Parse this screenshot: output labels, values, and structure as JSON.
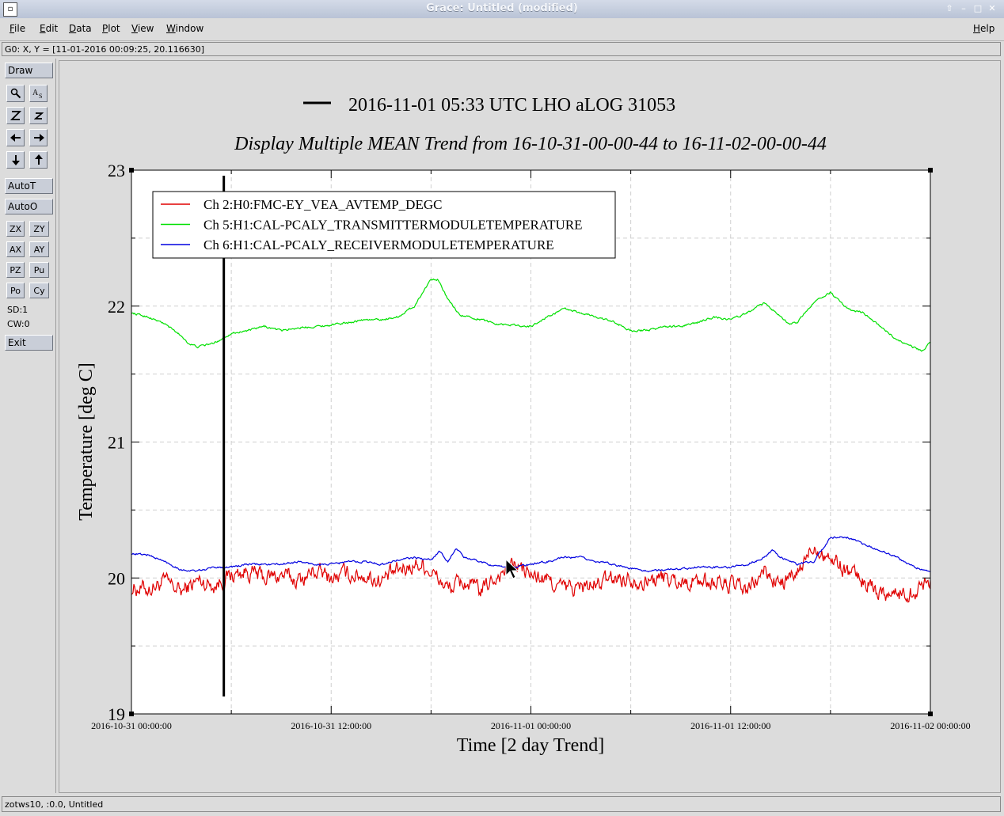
{
  "window": {
    "title": "Grace: Untitled (modified)"
  },
  "menubar": {
    "items": [
      "File",
      "Edit",
      "Data",
      "Plot",
      "View",
      "Window"
    ],
    "help": "Help"
  },
  "locator": "G0: X, Y = [11-01-2016 00:09:25, 20.116630]",
  "toolbar": {
    "draw": "Draw",
    "autot": "AutoT",
    "autoo": "AutoO",
    "zx": "ZX",
    "zy": "ZY",
    "ax": "AX",
    "ay": "AY",
    "pz": "PZ",
    "pu": "Pu",
    "po": "Po",
    "cy": "Cy",
    "sd": "SD:1",
    "cw": "CW:0",
    "exit": "Exit"
  },
  "statusbar": "zotws10, :0.0, Untitled",
  "chart_data": {
    "type": "line",
    "title": "2016-11-01 05:33 UTC LHO aLOG 31053",
    "subtitle": "Display Multiple MEAN Trend from 16-10-31-00-00-44 to 16-11-02-00-00-44",
    "xlabel": "Time [2 day Trend]",
    "ylabel": "Temperature [deg C]",
    "xlim": [
      0,
      48
    ],
    "ylim": [
      19,
      23
    ],
    "yticks": [
      "19",
      "20",
      "21",
      "22",
      "23"
    ],
    "xtick_values": [
      0,
      12,
      24,
      36,
      48
    ],
    "xtick_labels": [
      "2016-10-31 00:00:00",
      "2016-10-31 12:00:00",
      "2016-11-01 00:00:00",
      "2016-11-01 12:00:00",
      "2016-11-02 00:00:00"
    ],
    "grid": true,
    "legend_position": "top-left",
    "marker_line": {
      "label": "2016-11-01 05:33 UTC LHO aLOG 31053",
      "x": 5.55,
      "color": "#000000"
    },
    "series": [
      {
        "name": "Ch 2:H0:FMC-EY_VEA_AVTEMP_DEGC",
        "color": "#e00000",
        "noise": 0.05,
        "x": [
          0,
          1,
          2,
          3,
          4,
          5,
          6,
          7,
          8,
          9,
          10,
          11,
          12,
          13,
          14,
          15,
          16,
          17,
          17.5,
          18,
          19,
          20,
          21,
          22,
          23,
          24,
          25,
          26,
          27,
          28,
          29,
          30,
          31,
          32,
          33,
          34,
          35,
          36,
          37,
          38,
          39,
          40,
          41,
          42,
          43,
          44,
          45,
          46,
          47,
          48
        ],
        "y": [
          19.93,
          19.92,
          19.97,
          19.9,
          19.98,
          19.95,
          20.02,
          20.05,
          20.0,
          20.02,
          19.98,
          20.05,
          20.0,
          20.03,
          20.02,
          19.98,
          20.05,
          20.1,
          20.1,
          20.05,
          19.92,
          19.97,
          19.9,
          20.02,
          20.1,
          20.02,
          19.98,
          19.92,
          19.93,
          19.95,
          20.0,
          20.0,
          19.98,
          20.0,
          19.97,
          19.98,
          19.97,
          19.95,
          19.9,
          20.05,
          19.95,
          20.02,
          20.25,
          20.15,
          20.05,
          19.98,
          19.9,
          19.88,
          19.9,
          20.0
        ]
      },
      {
        "name": "Ch 5:H1:CAL-PCALY_TRANSMITTERMODULETEMPERATURE",
        "color": "#00e000",
        "noise": 0.006,
        "x": [
          0,
          1,
          2,
          3,
          3.5,
          4,
          5,
          6,
          7,
          8,
          9,
          10,
          11,
          12,
          13,
          14,
          15,
          16,
          17,
          18,
          18.4,
          19,
          19.8,
          20,
          21,
          22,
          23,
          24,
          25,
          26,
          27,
          28,
          29,
          30,
          31,
          32,
          33,
          34,
          35,
          36,
          37,
          38,
          39,
          39.5,
          40,
          41,
          42,
          43,
          44,
          45,
          46,
          47,
          47.5,
          48
        ],
        "y": [
          21.95,
          21.92,
          21.87,
          21.78,
          21.72,
          21.7,
          21.73,
          21.8,
          21.82,
          21.85,
          21.82,
          21.84,
          21.85,
          21.86,
          21.88,
          21.9,
          21.9,
          21.92,
          22.0,
          22.2,
          22.2,
          22.05,
          21.92,
          21.93,
          21.9,
          21.87,
          21.86,
          21.85,
          21.92,
          21.98,
          21.95,
          21.92,
          21.88,
          21.82,
          21.82,
          21.85,
          21.85,
          21.88,
          21.92,
          21.9,
          21.95,
          22.02,
          21.93,
          21.87,
          21.88,
          22.03,
          22.1,
          21.98,
          21.95,
          21.85,
          21.75,
          21.7,
          21.67,
          21.73
        ]
      },
      {
        "name": "Ch 6:H1:CAL-PCALY_RECEIVERMODULETEMPERATURE",
        "color": "#0000e0",
        "noise": 0.006,
        "x": [
          0,
          1,
          2,
          3,
          4,
          5,
          6,
          7,
          8,
          9,
          10,
          11,
          12,
          13,
          14,
          15,
          16,
          17,
          18,
          18.5,
          19,
          19.5,
          20,
          21,
          22,
          23,
          24,
          25,
          26,
          27,
          28,
          29,
          30,
          31,
          32,
          33,
          34,
          35,
          36,
          37,
          38,
          38.5,
          39,
          40,
          41,
          42,
          43,
          44,
          45,
          46,
          47,
          48
        ],
        "y": [
          20.18,
          20.17,
          20.12,
          20.06,
          20.05,
          20.08,
          20.08,
          20.1,
          20.1,
          20.1,
          20.12,
          20.1,
          20.1,
          20.12,
          20.12,
          20.1,
          20.13,
          20.15,
          20.13,
          20.2,
          20.12,
          20.22,
          20.15,
          20.12,
          20.08,
          20.08,
          20.1,
          20.12,
          20.15,
          20.15,
          20.12,
          20.1,
          20.07,
          20.05,
          20.06,
          20.07,
          20.08,
          20.08,
          20.08,
          20.1,
          20.15,
          20.2,
          20.15,
          20.1,
          20.12,
          20.3,
          20.3,
          20.25,
          20.2,
          20.15,
          20.08,
          20.05
        ]
      }
    ]
  }
}
